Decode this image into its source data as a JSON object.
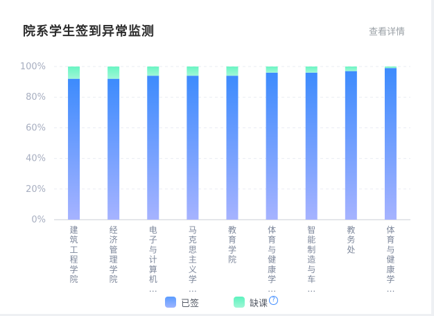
{
  "header": {
    "title": "院系学生签到异常监测",
    "more_link": "查看详情"
  },
  "chart_data": {
    "type": "bar",
    "stacked": true,
    "categories": [
      [
        "建",
        "筑",
        "工",
        "程",
        "学",
        "院"
      ],
      [
        "经",
        "济",
        "管",
        "理",
        "学",
        "院"
      ],
      [
        "电",
        "子",
        "与",
        "计",
        "算",
        "机",
        "…"
      ],
      [
        "马",
        "克",
        "思",
        "主",
        "义",
        "学",
        "…"
      ],
      [
        "教",
        "育",
        "学",
        "院"
      ],
      [
        "体",
        "育",
        "与",
        "健",
        "康",
        "学",
        "…"
      ],
      [
        "智",
        "能",
        "制",
        "造",
        "与",
        "车",
        "…"
      ],
      [
        "教",
        "务",
        "处"
      ],
      [
        "体",
        "育",
        "与",
        "健",
        "康",
        "学",
        "…"
      ]
    ],
    "series": [
      {
        "name": "已签",
        "values": [
          92,
          92,
          94,
          94,
          94,
          96,
          96,
          97,
          99
        ]
      },
      {
        "name": "缺课",
        "values": [
          8,
          8,
          6,
          6,
          6,
          4,
          4,
          3,
          1
        ]
      }
    ],
    "yticks": [
      "0%",
      "20%",
      "40%",
      "60%",
      "80%",
      "100%"
    ],
    "ylim": [
      0,
      100
    ],
    "grid": true,
    "legend_position": "bottom"
  },
  "legend": {
    "signed_label": "已签",
    "absent_label": "缺课",
    "help_icon": "?"
  },
  "colors": {
    "signed_top": "#3d8bfd",
    "signed_bottom": "#a6b3ff",
    "absent_top": "#6af5c3",
    "absent_bottom": "#9ff7d6",
    "grid": "#e9ecf2",
    "axis": "#c8cdd6"
  }
}
